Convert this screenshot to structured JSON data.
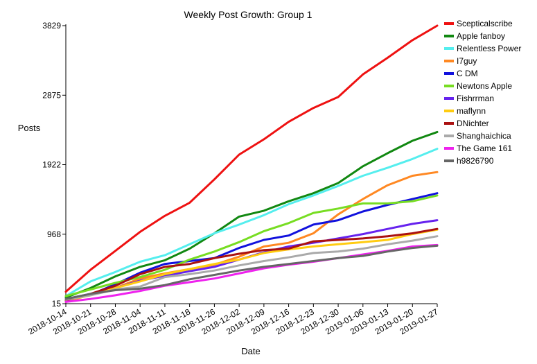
{
  "chart_data": {
    "type": "line",
    "title": "Weekly Post Growth: Group 1",
    "xlabel": "Date",
    "ylabel": "Posts",
    "x": [
      "2018-10-14",
      "2018-10-21",
      "2018-10-28",
      "2018-11-04",
      "2018-11-11",
      "2018-11-18",
      "2018-11-26",
      "2018-12-02",
      "2018-12-09",
      "2018-12-16",
      "2018-12-23",
      "2018-12-30",
      "2019-01-06",
      "2019-01-13",
      "2019-01-20",
      "2019-01-27"
    ],
    "yticks": [
      15,
      968,
      1922,
      2875,
      3829
    ],
    "yticks_labels": [
      "15",
      "968",
      "1922",
      "2875",
      "3829"
    ],
    "ylim": [
      15,
      3829
    ],
    "grid": false,
    "legend": "right",
    "series": [
      {
        "name": "Scepticalscribe",
        "color": "#ee1111",
        "values": [
          180,
          480,
          740,
          1000,
          1220,
          1400,
          1720,
          2060,
          2270,
          2510,
          2700,
          2850,
          3160,
          3390,
          3630,
          3829
        ]
      },
      {
        "name": "Apple fanboy",
        "color": "#118811",
        "values": [
          100,
          230,
          390,
          520,
          610,
          770,
          980,
          1210,
          1290,
          1420,
          1530,
          1670,
          1900,
          2080,
          2250,
          2370
        ]
      },
      {
        "name": "Relentless Power",
        "color": "#55eeee",
        "values": [
          120,
          320,
          450,
          590,
          680,
          830,
          980,
          1100,
          1230,
          1380,
          1500,
          1630,
          1770,
          1880,
          2000,
          2140
        ]
      },
      {
        "name": "I7guy",
        "color": "#ff8822",
        "values": [
          40,
          140,
          230,
          360,
          430,
          490,
          550,
          660,
          800,
          850,
          980,
          1240,
          1450,
          1640,
          1770,
          1820
        ]
      },
      {
        "name": "C DM",
        "color": "#1111dd",
        "values": [
          60,
          140,
          280,
          440,
          560,
          600,
          640,
          780,
          890,
          950,
          1100,
          1160,
          1280,
          1370,
          1450,
          1530
        ]
      },
      {
        "name": "Newtons Apple",
        "color": "#77dd22",
        "values": [
          120,
          210,
          300,
          380,
          480,
          620,
          730,
          860,
          1010,
          1120,
          1260,
          1320,
          1390,
          1390,
          1420,
          1500
        ]
      },
      {
        "name": "Fishrrman",
        "color": "#6622ee",
        "values": [
          80,
          150,
          230,
          330,
          400,
          460,
          520,
          620,
          720,
          800,
          850,
          910,
          970,
          1040,
          1110,
          1160
        ]
      },
      {
        "name": "maflynn",
        "color": "#ffcc11",
        "values": [
          60,
          130,
          230,
          320,
          420,
          490,
          560,
          620,
          710,
          760,
          800,
          830,
          860,
          890,
          970,
          1030
        ]
      },
      {
        "name": "DNichter",
        "color": "#aa1111",
        "values": [
          60,
          150,
          260,
          420,
          520,
          560,
          640,
          700,
          750,
          770,
          870,
          890,
          910,
          940,
          980,
          1040
        ]
      },
      {
        "name": "Shanghaichica",
        "color": "#aaaaaa",
        "values": [
          70,
          130,
          210,
          250,
          380,
          420,
          470,
          540,
          600,
          650,
          710,
          730,
          770,
          830,
          880,
          940
        ]
      },
      {
        "name": "The Game 161",
        "color": "#ee22ee",
        "values": [
          40,
          80,
          130,
          190,
          260,
          310,
          360,
          430,
          500,
          550,
          590,
          640,
          690,
          740,
          800,
          820
        ]
      },
      {
        "name": "h9826790",
        "color": "#666666",
        "values": [
          80,
          150,
          200,
          220,
          270,
          350,
          410,
          470,
          520,
          560,
          600,
          640,
          670,
          730,
          780,
          810
        ]
      }
    ]
  }
}
